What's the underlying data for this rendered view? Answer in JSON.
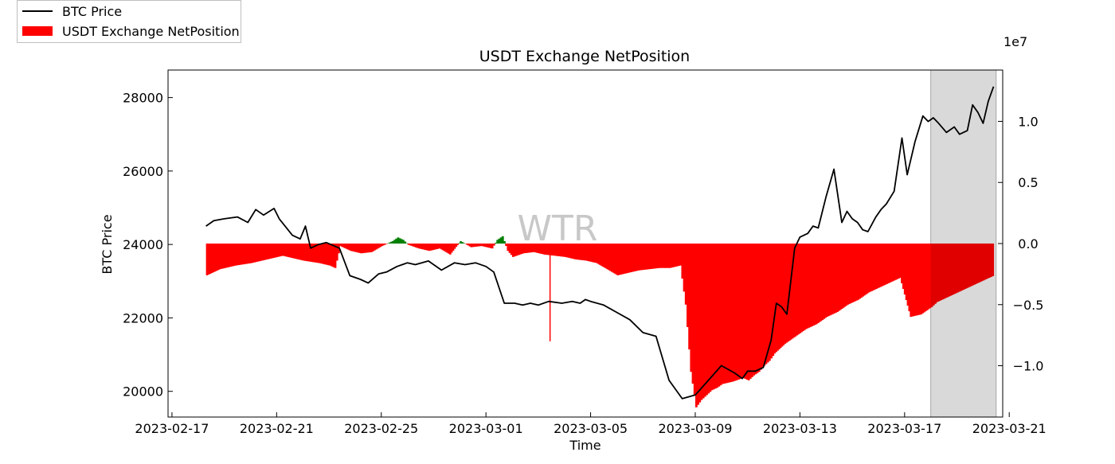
{
  "chart_data": {
    "type": "bar+line",
    "title": "USDT Exchange NetPosition",
    "xlabel": "Time",
    "ylabel_left": "BTC Price",
    "ylabel_right": "",
    "right_axis_multiplier": "1e7",
    "watermark": "WTR",
    "x_ticks": [
      "2023-02-17",
      "2023-02-21",
      "2023-02-25",
      "2023-03-01",
      "2023-03-05",
      "2023-03-09",
      "2023-03-13",
      "2023-03-17",
      "2023-03-21"
    ],
    "xlim_days": [
      -0.15,
      31.75
    ],
    "left_ylim": [
      19300,
      28750
    ],
    "left_yticks": [
      20000,
      22000,
      24000,
      26000,
      28000
    ],
    "right_ylim": [
      -1.42,
      1.42
    ],
    "right_yticks": [
      -1.0,
      -0.5,
      0.0,
      0.5,
      1.0
    ],
    "right_ytick_labels": [
      "−1.0",
      "−0.5",
      "0.0",
      "0.5",
      "1.0"
    ],
    "highlight_range_days": [
      29.0,
      31.5
    ],
    "colors": {
      "price": "#000000",
      "negative": "#ff0000",
      "positive": "#008000",
      "highlight": "#d9d9d9"
    },
    "series": [
      {
        "name": "BTC Price",
        "axis": "left",
        "x_days": [
          1.3,
          1.6,
          2.0,
          2.5,
          2.9,
          3.2,
          3.5,
          3.9,
          4.1,
          4.6,
          4.9,
          5.1,
          5.3,
          5.6,
          5.9,
          6.4,
          6.8,
          7.2,
          7.5,
          7.9,
          8.2,
          8.6,
          9.0,
          9.3,
          9.8,
          10.3,
          10.8,
          11.2,
          11.6,
          12.0,
          12.3,
          12.7,
          13.1,
          13.4,
          13.7,
          14.0,
          14.4,
          14.9,
          15.3,
          15.6,
          15.8,
          16.0,
          16.5,
          17.0,
          17.5,
          18.0,
          18.5,
          19.0,
          19.5,
          20.0,
          20.5,
          21.0,
          21.5,
          21.8,
          22.0,
          22.3,
          22.6,
          22.9,
          23.1,
          23.3,
          23.5,
          23.8,
          24.0,
          24.3,
          24.5,
          24.7,
          25.0,
          25.3,
          25.6,
          25.8,
          26.0,
          26.2,
          26.4,
          26.6,
          26.9,
          27.1,
          27.3,
          27.6,
          27.9,
          28.1,
          28.4,
          28.7,
          28.9,
          29.1,
          29.3,
          29.6,
          29.9,
          30.1,
          30.4,
          30.6,
          30.8,
          31.0,
          31.2,
          31.4
        ],
        "values": [
          24500,
          24650,
          24700,
          24750,
          24600,
          24950,
          24800,
          24980,
          24700,
          24250,
          24150,
          24500,
          23900,
          24000,
          24050,
          23900,
          23150,
          23050,
          22950,
          23200,
          23250,
          23400,
          23500,
          23450,
          23550,
          23300,
          23500,
          23450,
          23500,
          23400,
          23250,
          22400,
          22400,
          22350,
          22400,
          22350,
          22450,
          22400,
          22450,
          22400,
          22500,
          22450,
          22350,
          22150,
          21950,
          21600,
          21500,
          20300,
          19800,
          19900,
          20300,
          20700,
          20500,
          20350,
          20550,
          20550,
          20650,
          21400,
          22400,
          22300,
          22100,
          23900,
          24200,
          24300,
          24500,
          24450,
          25300,
          26050,
          24600,
          24900,
          24700,
          24600,
          24400,
          24350,
          24750,
          24950,
          25100,
          25450,
          26900,
          25900,
          26800,
          27500,
          27350,
          27450,
          27300,
          27050,
          27200,
          27000,
          27100,
          27800,
          27600,
          27300,
          27900,
          28300
        ]
      },
      {
        "name": "USDT Exchange NetPosition",
        "axis": "right",
        "unit": "x 1e7",
        "x_days": [
          1.3,
          1.8,
          2.4,
          3.0,
          3.6,
          4.2,
          4.6,
          5.0,
          5.6,
          6.0,
          6.2,
          6.4,
          6.8,
          7.2,
          7.6,
          8.0,
          8.4,
          8.6,
          8.8,
          9.0,
          9.4,
          9.8,
          10.2,
          10.6,
          11.0,
          11.4,
          11.8,
          12.2,
          12.4,
          12.6,
          12.8,
          13.0,
          13.4,
          13.8,
          14.2,
          14.6,
          15.0,
          15.4,
          15.8,
          16.2,
          16.6,
          17.0,
          17.4,
          17.8,
          18.2,
          18.6,
          19.0,
          19.4,
          19.6,
          19.8,
          20.0,
          20.2,
          20.4,
          20.6,
          20.8,
          21.0,
          21.4,
          21.8,
          22.0,
          22.2,
          22.4,
          22.6,
          22.8,
          23.0,
          23.4,
          23.8,
          24.2,
          24.6,
          25.0,
          25.4,
          25.8,
          26.2,
          26.6,
          27.0,
          27.4,
          27.8,
          28.2,
          28.6,
          29.0,
          29.2,
          29.6,
          30.0,
          30.4,
          30.8,
          31.2,
          31.4
        ],
        "values": [
          -0.26,
          -0.21,
          -0.18,
          -0.16,
          -0.13,
          -0.1,
          -0.12,
          -0.14,
          -0.16,
          -0.18,
          -0.2,
          -0.02,
          -0.06,
          -0.08,
          -0.07,
          -0.02,
          0.02,
          0.05,
          0.03,
          -0.01,
          -0.04,
          -0.06,
          -0.04,
          -0.09,
          0.02,
          -0.03,
          -0.02,
          -0.04,
          0.03,
          0.06,
          -0.06,
          -0.11,
          -0.08,
          -0.07,
          -0.09,
          -0.1,
          -0.11,
          -0.13,
          -0.14,
          -0.16,
          -0.21,
          -0.26,
          -0.24,
          -0.22,
          -0.21,
          -0.2,
          -0.2,
          -0.18,
          -0.5,
          -1.05,
          -1.34,
          -1.28,
          -1.24,
          -1.2,
          -1.18,
          -1.15,
          -1.13,
          -1.1,
          -1.12,
          -1.08,
          -1.05,
          -1.0,
          -0.96,
          -0.9,
          -0.82,
          -0.76,
          -0.7,
          -0.66,
          -0.6,
          -0.56,
          -0.5,
          -0.46,
          -0.4,
          -0.36,
          -0.32,
          -0.28,
          -0.6,
          -0.58,
          -0.52,
          -0.48,
          -0.44,
          -0.4,
          -0.36,
          -0.32,
          -0.28,
          -0.26
        ]
      }
    ],
    "spike": {
      "x_day": 14.45,
      "value": -0.8
    }
  }
}
